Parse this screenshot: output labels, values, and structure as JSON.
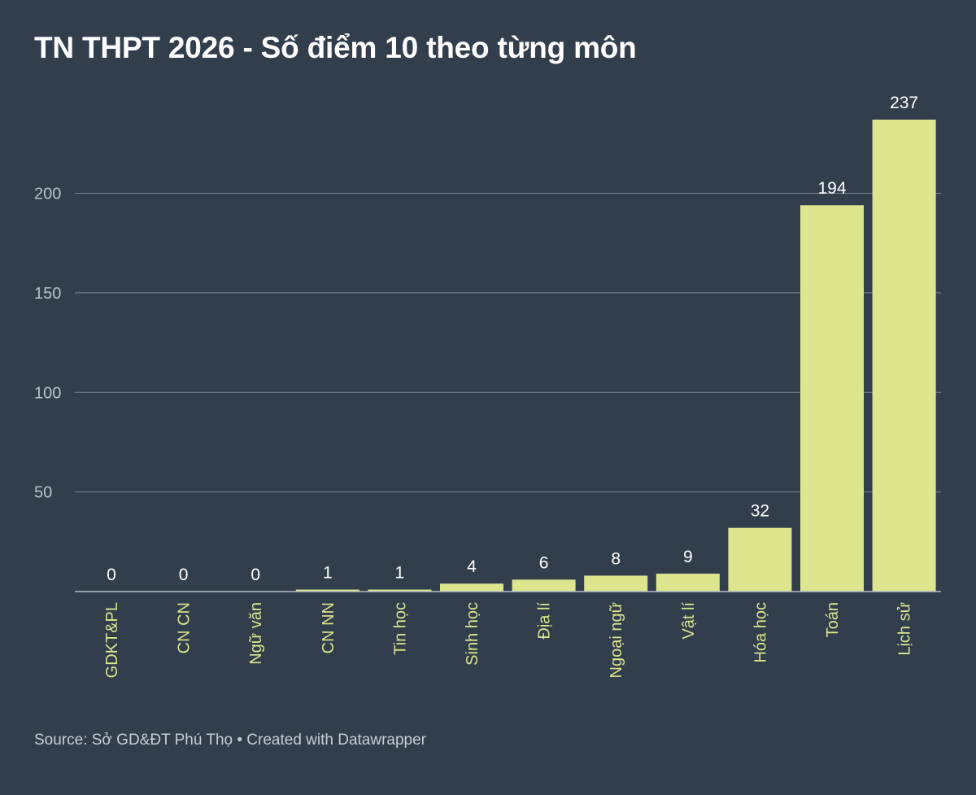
{
  "title": "TN THPT 2026 - Số điểm 10 theo từng môn",
  "footer": "Source: Sở GD&ĐT Phú Thọ • Created with Datawrapper",
  "colors": {
    "background": "#333e4d",
    "bar": "#dde68e",
    "category_label": "#dbe58f"
  },
  "chart_data": {
    "type": "bar",
    "title": "TN THPT 2026 - Số điểm 10 theo từng môn",
    "xlabel": "",
    "ylabel": "",
    "categories": [
      "GDKT&PL",
      "CN CN",
      "Ngữ văn",
      "CN NN",
      "Tin học",
      "Sinh học",
      "Địa lí",
      "Ngoại ngữ",
      "Vật lí",
      "Hóa học",
      "Toán",
      "Lịch sử"
    ],
    "values": [
      0,
      0,
      0,
      1,
      1,
      4,
      6,
      8,
      9,
      32,
      194,
      237
    ],
    "y_ticks": [
      50,
      100,
      150,
      200
    ],
    "ylim": [
      0,
      237
    ],
    "grid": true,
    "legend": "none",
    "data_labels": true
  }
}
